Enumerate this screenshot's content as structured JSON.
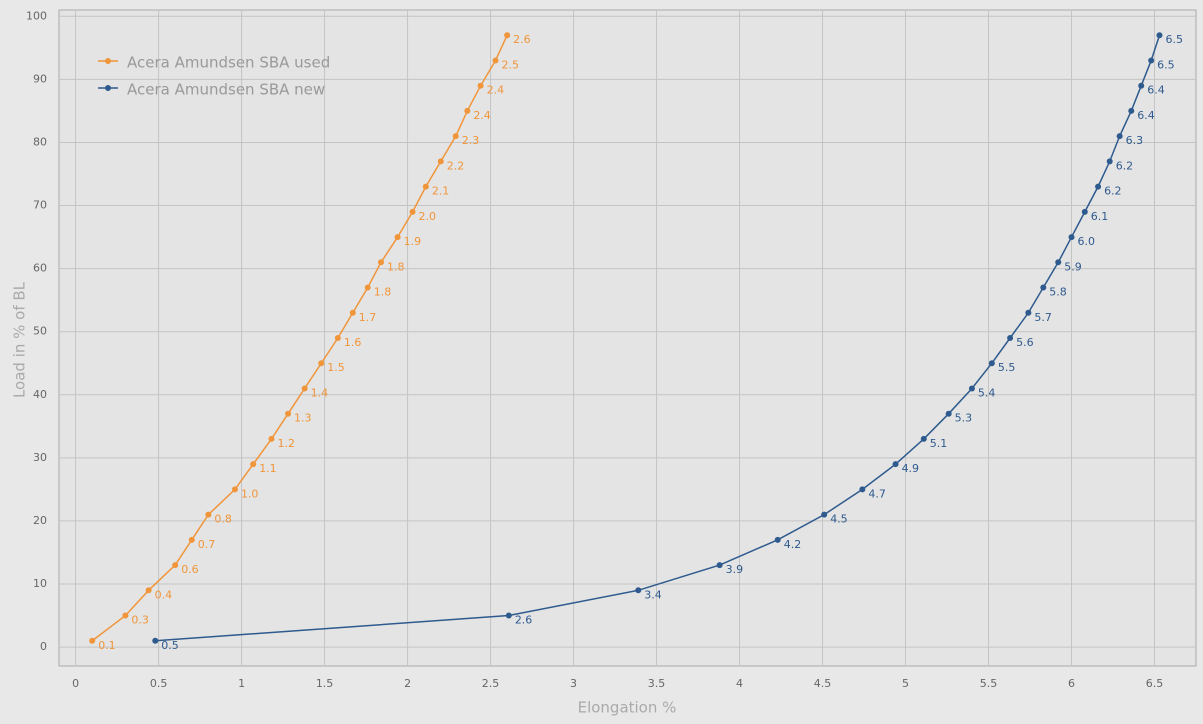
{
  "chart_data": {
    "type": "line",
    "x_label": "Elongation %",
    "y_label": "Load in % of BL",
    "xlim": [
      -0.1,
      6.75
    ],
    "ylim": [
      -3,
      101
    ],
    "xticks": [
      0,
      0.5,
      1,
      1.5,
      2,
      2.5,
      3,
      3.5,
      4,
      4.5,
      5,
      5.5,
      6,
      6.5
    ],
    "yticks": [
      0,
      10,
      20,
      30,
      40,
      50,
      60,
      70,
      80,
      90,
      100
    ],
    "grid": true,
    "legend": "top-left",
    "series": [
      {
        "name": "Acera Amundsen SBA used",
        "color": "#f0953a",
        "x": [
          0.1,
          0.3,
          0.44,
          0.6,
          0.7,
          0.8,
          0.96,
          1.07,
          1.18,
          1.28,
          1.38,
          1.48,
          1.58,
          1.67,
          1.76,
          1.84,
          1.94,
          2.03,
          2.11,
          2.2,
          2.29,
          2.36,
          2.44,
          2.53,
          2.6
        ],
        "values": [
          1,
          5,
          9,
          13,
          17,
          21,
          25,
          29,
          33,
          37,
          41,
          45,
          49,
          53,
          57,
          61,
          65,
          69,
          73,
          77,
          81,
          85,
          89,
          93,
          97
        ],
        "value_labels": [
          "0.1",
          "0.3",
          "0.4",
          "0.6",
          "0.7",
          "0.8",
          "1.0",
          "1.1",
          "1.2",
          "1.3",
          "1.4",
          "1.5",
          "1.6",
          "1.7",
          "1.8",
          "1.8",
          "1.9",
          "2.0",
          "2.1",
          "2.2",
          "2.3",
          "2.4",
          "2.4",
          "2.5",
          "2.6"
        ]
      },
      {
        "name": "Acera Amundsen SBA new",
        "color": "#2e5a8e",
        "x": [
          0.48,
          2.61,
          3.39,
          3.88,
          4.23,
          4.51,
          4.74,
          4.94,
          5.11,
          5.26,
          5.4,
          5.52,
          5.63,
          5.74,
          5.83,
          5.92,
          6.0,
          6.08,
          6.16,
          6.23,
          6.29,
          6.36,
          6.42,
          6.48,
          6.53
        ],
        "values": [
          1,
          5,
          9,
          13,
          17,
          21,
          25,
          29,
          33,
          37,
          41,
          45,
          49,
          53,
          57,
          61,
          65,
          69,
          73,
          77,
          81,
          85,
          89,
          93,
          97
        ],
        "value_labels": [
          "0.5",
          "2.6",
          "3.4",
          "3.9",
          "4.2",
          "4.5",
          "4.7",
          "4.9",
          "5.1",
          "5.3",
          "5.4",
          "5.5",
          "5.6",
          "5.7",
          "5.8",
          "5.9",
          "6.0",
          "6.1",
          "6.2",
          "6.2",
          "6.3",
          "6.4",
          "6.4",
          "6.5",
          "6.5"
        ]
      }
    ]
  }
}
